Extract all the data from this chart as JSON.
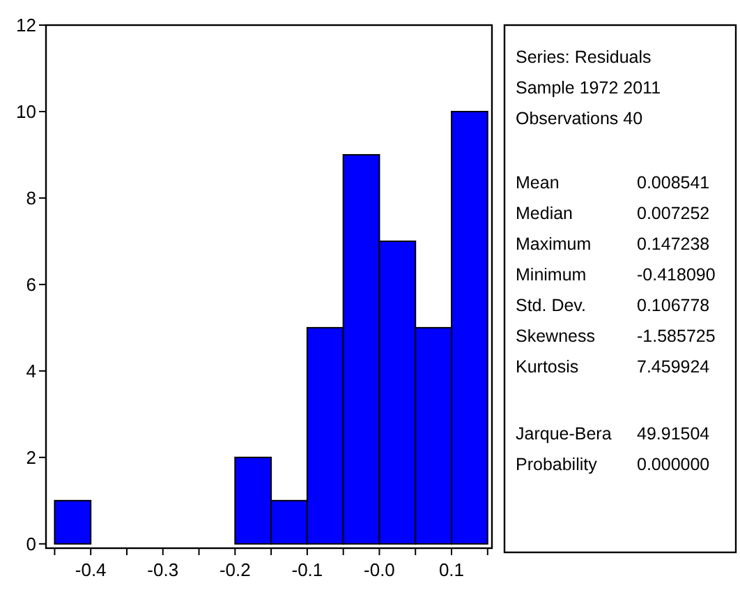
{
  "chart_data": [
    {
      "type": "histogram",
      "bins": [
        -0.45,
        -0.4,
        -0.35,
        -0.3,
        -0.25,
        -0.2,
        -0.15,
        -0.1,
        -0.05,
        0,
        0.05,
        0.1,
        0.15
      ],
      "values": [
        1,
        0,
        0,
        0,
        0,
        2,
        1,
        5,
        9,
        7,
        5,
        10
      ],
      "color": "#0000ff",
      "xlim": [
        -0.462,
        0.156
      ],
      "ylim": [
        -0.1,
        12
      ],
      "xticks": [
        {
          "value": -0.45,
          "label": null
        },
        {
          "value": -0.4,
          "label": "-0.4"
        },
        {
          "value": -0.35,
          "label": null
        },
        {
          "value": -0.3,
          "label": "-0.3"
        },
        {
          "value": -0.25,
          "label": null
        },
        {
          "value": -0.2,
          "label": "-0.2"
        },
        {
          "value": -0.15,
          "label": null
        },
        {
          "value": -0.1,
          "label": "-0.1"
        },
        {
          "value": -0.05,
          "label": null
        },
        {
          "value": 0,
          "label": "-0.0"
        },
        {
          "value": 0.05,
          "label": null
        },
        {
          "value": 0.1,
          "label": "0.1"
        },
        {
          "value": 0.15,
          "label": null
        }
      ],
      "yticks": [
        0,
        2,
        4,
        6,
        8,
        10,
        12
      ]
    },
    {
      "type": "other",
      "annotations": [
        "Series: Residuals",
        "Sample 1972 2011",
        "Observations 40",
        "Mean",
        "0.008541",
        "Median",
        "0.007252",
        "Maximum",
        "0.147238",
        "Minimum",
        "-0.418090",
        "Std. Dev.",
        "0.106778",
        "Skewness",
        "-1.585725",
        "Kurtosis",
        "7.459924",
        "Jarque-Bera",
        "49.91504",
        "Probability",
        "0.000000"
      ]
    }
  ]
}
